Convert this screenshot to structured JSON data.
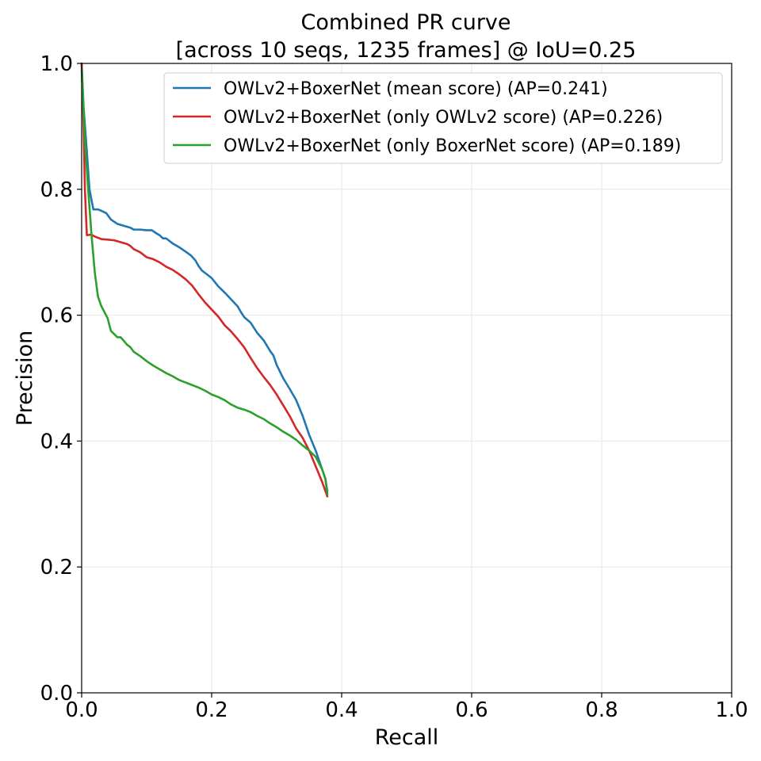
{
  "chart_data": {
    "type": "line",
    "title": "Combined PR curve",
    "subtitle": "[across 10 seqs, 1235 frames] @ IoU=0.25",
    "xlabel": "Recall",
    "ylabel": "Precision",
    "xlim": [
      0.0,
      1.0
    ],
    "ylim": [
      0.0,
      1.0
    ],
    "xticks": [
      "0.0",
      "0.2",
      "0.4",
      "0.6",
      "0.8",
      "1.0"
    ],
    "yticks": [
      "0.0",
      "0.2",
      "0.4",
      "0.6",
      "0.8",
      "1.0"
    ],
    "grid": true,
    "legend_position": "top-right",
    "series": [
      {
        "name": "OWLv2+BoxerNet (mean score) (AP=0.241)",
        "color": "#1f77b4",
        "x": [
          0.0,
          0.003,
          0.008,
          0.012,
          0.018,
          0.025,
          0.03,
          0.038,
          0.045,
          0.055,
          0.065,
          0.075,
          0.08,
          0.09,
          0.1,
          0.108,
          0.115,
          0.12,
          0.125,
          0.13,
          0.14,
          0.15,
          0.16,
          0.168,
          0.175,
          0.18,
          0.185,
          0.19,
          0.2,
          0.21,
          0.215,
          0.22,
          0.23,
          0.24,
          0.245,
          0.25,
          0.26,
          0.27,
          0.28,
          0.29,
          0.295,
          0.3,
          0.31,
          0.32,
          0.33,
          0.34,
          0.35,
          0.36,
          0.365,
          0.37,
          0.375,
          0.378
        ],
        "y": [
          1.0,
          0.93,
          0.86,
          0.8,
          0.768,
          0.768,
          0.766,
          0.762,
          0.752,
          0.745,
          0.742,
          0.739,
          0.736,
          0.736,
          0.735,
          0.735,
          0.73,
          0.727,
          0.722,
          0.722,
          0.714,
          0.708,
          0.701,
          0.695,
          0.687,
          0.678,
          0.671,
          0.667,
          0.659,
          0.646,
          0.641,
          0.636,
          0.625,
          0.614,
          0.605,
          0.597,
          0.588,
          0.572,
          0.56,
          0.543,
          0.536,
          0.521,
          0.5,
          0.483,
          0.465,
          0.44,
          0.41,
          0.385,
          0.37,
          0.355,
          0.34,
          0.32
        ]
      },
      {
        "name": "OWLv2+BoxerNet (only OWLv2 score) (AP=0.226)",
        "color": "#d62728",
        "x": [
          0.0,
          0.003,
          0.005,
          0.008,
          0.015,
          0.02,
          0.03,
          0.04,
          0.05,
          0.06,
          0.07,
          0.075,
          0.08,
          0.09,
          0.1,
          0.11,
          0.12,
          0.13,
          0.14,
          0.15,
          0.16,
          0.17,
          0.18,
          0.19,
          0.2,
          0.21,
          0.22,
          0.23,
          0.24,
          0.25,
          0.26,
          0.27,
          0.28,
          0.29,
          0.3,
          0.31,
          0.32,
          0.33,
          0.34,
          0.35,
          0.36,
          0.37,
          0.378
        ],
        "y": [
          1.0,
          0.9,
          0.8,
          0.727,
          0.728,
          0.725,
          0.721,
          0.72,
          0.719,
          0.716,
          0.713,
          0.71,
          0.705,
          0.7,
          0.692,
          0.689,
          0.684,
          0.677,
          0.672,
          0.665,
          0.657,
          0.647,
          0.633,
          0.62,
          0.609,
          0.598,
          0.584,
          0.574,
          0.562,
          0.549,
          0.532,
          0.516,
          0.502,
          0.489,
          0.474,
          0.457,
          0.44,
          0.42,
          0.405,
          0.385,
          0.36,
          0.335,
          0.312
        ]
      },
      {
        "name": "OWLv2+BoxerNet (only BoxerNet score) (AP=0.189)",
        "color": "#2ca02c",
        "x": [
          0.0,
          0.005,
          0.01,
          0.015,
          0.02,
          0.025,
          0.03,
          0.035,
          0.04,
          0.045,
          0.05,
          0.055,
          0.06,
          0.07,
          0.075,
          0.08,
          0.09,
          0.1,
          0.11,
          0.12,
          0.13,
          0.14,
          0.15,
          0.16,
          0.17,
          0.18,
          0.19,
          0.2,
          0.21,
          0.22,
          0.23,
          0.24,
          0.25,
          0.26,
          0.27,
          0.28,
          0.29,
          0.3,
          0.31,
          0.32,
          0.33,
          0.34,
          0.35,
          0.36,
          0.37,
          0.375,
          0.378
        ],
        "y": [
          0.99,
          0.88,
          0.8,
          0.73,
          0.67,
          0.63,
          0.615,
          0.605,
          0.595,
          0.575,
          0.57,
          0.565,
          0.565,
          0.553,
          0.549,
          0.542,
          0.535,
          0.527,
          0.52,
          0.514,
          0.508,
          0.503,
          0.497,
          0.493,
          0.489,
          0.485,
          0.48,
          0.474,
          0.47,
          0.465,
          0.458,
          0.453,
          0.45,
          0.446,
          0.44,
          0.435,
          0.428,
          0.422,
          0.415,
          0.409,
          0.402,
          0.393,
          0.385,
          0.375,
          0.355,
          0.34,
          0.315
        ]
      }
    ]
  }
}
